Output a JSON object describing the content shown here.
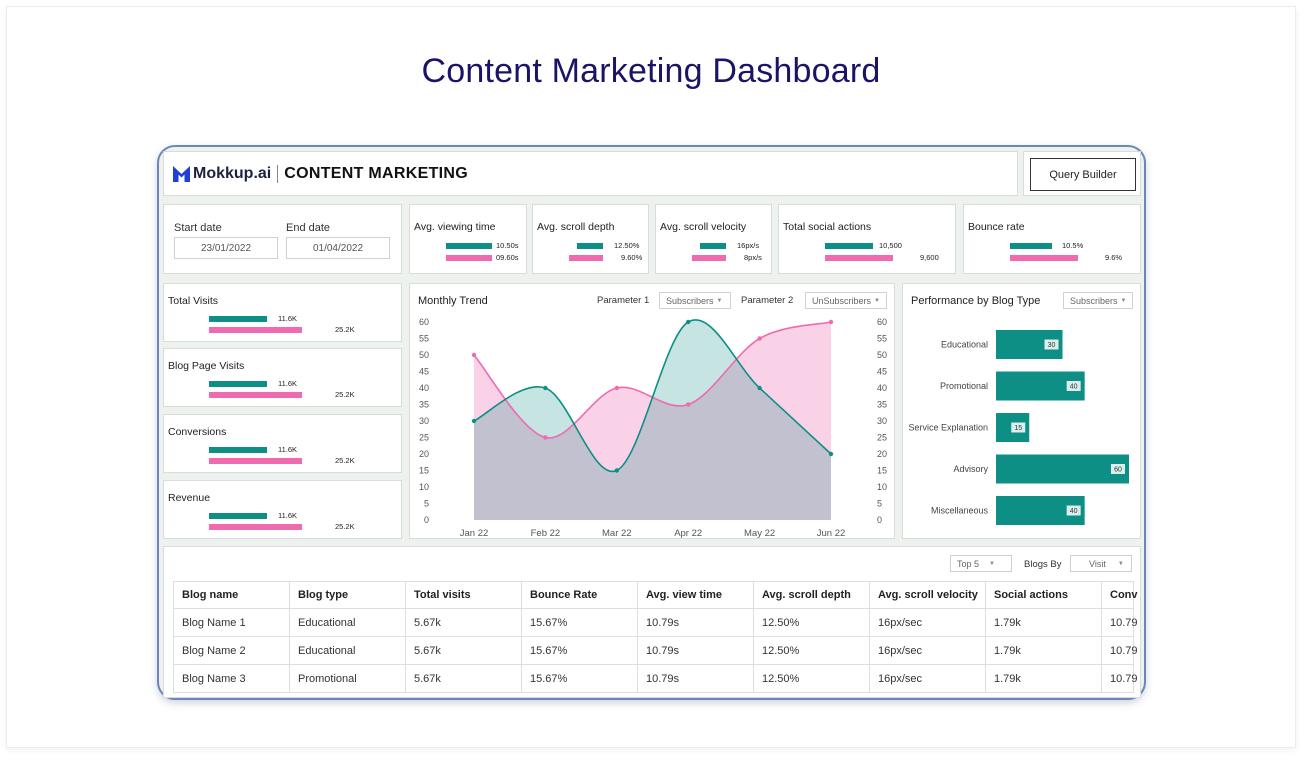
{
  "page_title": "Content Marketing Dashboard",
  "header": {
    "brand": "Mokkup.ai",
    "title": "CONTENT MARKETING",
    "query_builder_label": "Query Builder"
  },
  "dates": {
    "start_label": "Start date",
    "start_value": "23/01/2022",
    "end_label": "End date",
    "end_value": "01/04/2022"
  },
  "kpis": [
    {
      "title": "Avg. viewing time",
      "value1": "10.50s",
      "value2": "09.60s"
    },
    {
      "title": "Avg. scroll depth",
      "value1": "12.50%",
      "value2": "9.60%"
    },
    {
      "title": "Avg. scroll velocity",
      "value1": "16px/s",
      "value2": "8px/s"
    },
    {
      "title": "Total social actions",
      "value1": "10,500",
      "value2": "9,600"
    },
    {
      "title": "Bounce rate",
      "value1": "10.5%",
      "value2": "9.6%"
    }
  ],
  "side_metrics": [
    {
      "title": "Total Visits",
      "value1": "11.6K",
      "value2": "25.2K"
    },
    {
      "title": "Blog Page Visits",
      "value1": "11.6K",
      "value2": "25.2K"
    },
    {
      "title": "Conversions",
      "value1": "11.6K",
      "value2": "25.2K"
    },
    {
      "title": "Revenue",
      "value1": "11.6K",
      "value2": "25.2K"
    }
  ],
  "monthly_trend": {
    "param1_label": "Parameter 1",
    "param1_value": "Subscribers",
    "param2_label": "Parameter 2",
    "param2_value": "UnSubscribers"
  },
  "blog_type": {
    "select_value": "Subscribers"
  },
  "table_controls": {
    "top_value": "Top 5",
    "blogs_by_label": "Blogs By",
    "blogs_by_value": "Visit"
  },
  "table": {
    "headers": [
      "Blog name",
      "Blog type",
      "Total visits",
      "Bounce Rate",
      "Avg. view time",
      "Avg. scroll depth",
      "Avg. scroll velocity",
      "Social actions",
      "Conv"
    ],
    "rows": [
      [
        "Blog Name 1",
        "Educational",
        "5.67k",
        "15.67%",
        "10.79s",
        "12.50%",
        "16px/sec",
        "1.79k",
        "10.79"
      ],
      [
        "Blog Name 2",
        "Educational",
        "5.67k",
        "15.67%",
        "10.79s",
        "12.50%",
        "16px/sec",
        "1.79k",
        "10.79"
      ],
      [
        "Blog Name 3",
        "Promotional",
        "5.67k",
        "15.67%",
        "10.79s",
        "12.50%",
        "16px/sec",
        "1.79k",
        "10.79"
      ]
    ]
  },
  "colors": {
    "teal": "#0d8f86",
    "pink": "#f06ab0",
    "title": "#1a1466"
  },
  "chart_data": [
    {
      "type": "area",
      "title": "Monthly Trend",
      "categories": [
        "Jan 22",
        "Feb 22",
        "Mar 22",
        "Apr 22",
        "May 22",
        "Jun 22"
      ],
      "series": [
        {
          "name": "Subscribers",
          "values": [
            30,
            40,
            15,
            60,
            40,
            20
          ]
        },
        {
          "name": "UnSubscribers",
          "values": [
            50,
            25,
            40,
            35,
            55,
            60
          ]
        }
      ],
      "ylim": [
        0,
        60
      ],
      "yticks": [
        0,
        5,
        10,
        15,
        20,
        25,
        30,
        35,
        40,
        45,
        50,
        55,
        60
      ]
    },
    {
      "type": "bar",
      "title": "Performance by Blog Type",
      "orientation": "horizontal",
      "categories": [
        "Educational",
        "Promotional",
        "Service Explanation",
        "Advisory",
        "Miscellaneous"
      ],
      "values": [
        30,
        40,
        15,
        60,
        40
      ],
      "xlim": [
        0,
        60
      ]
    }
  ]
}
